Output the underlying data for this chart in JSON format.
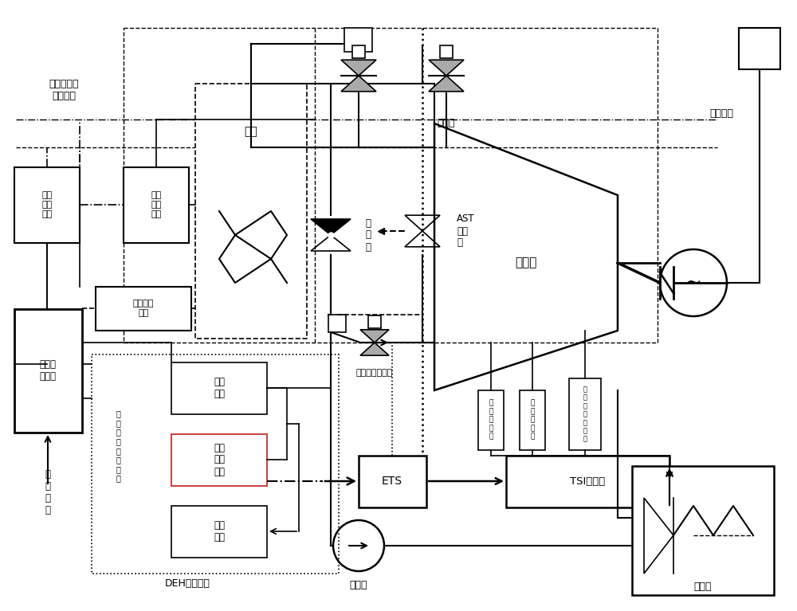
{
  "bg_color": "#ffffff",
  "fig_width": 10.0,
  "fig_height": 7.67,
  "dpi": 100,
  "labels": {
    "changsu": "常速调节及\n快速调节",
    "famen1": "阀门\n执行\n机构",
    "famen2": "阀门\n执行\n机构",
    "famen3": "阀门执行\n机构",
    "guolu": "锅炉",
    "panglu_fa": "旁\n路\n阀",
    "tiaojie_fa": "调节阀",
    "AST": "AST\n电磁\n阀",
    "qinglunji": "汽轮机",
    "guliDW": "孤立电网",
    "panglu_tiaojie": "旁路喷水调节阀",
    "zhuansu": "转\n速\n传\n感\n器",
    "zhendong": "振\n动\n传\n感\n器",
    "zhouwei": "轴\n向\n位\n移\n传\n感\n器",
    "TSI": "TSI监视仪",
    "ETS": "ETS",
    "panglu_tjs": "旁路调\n节系统",
    "cesu_mod": "测速\n模块",
    "yici_mod": "一次\n调频\n模块",
    "fuwu_mod": "伺服\n模块",
    "DEH": "DEH调速系统",
    "panglu_ya": "旁\n路\n压\n力",
    "jishui_beng": "给水泵",
    "ningqi": "凝汽器"
  }
}
